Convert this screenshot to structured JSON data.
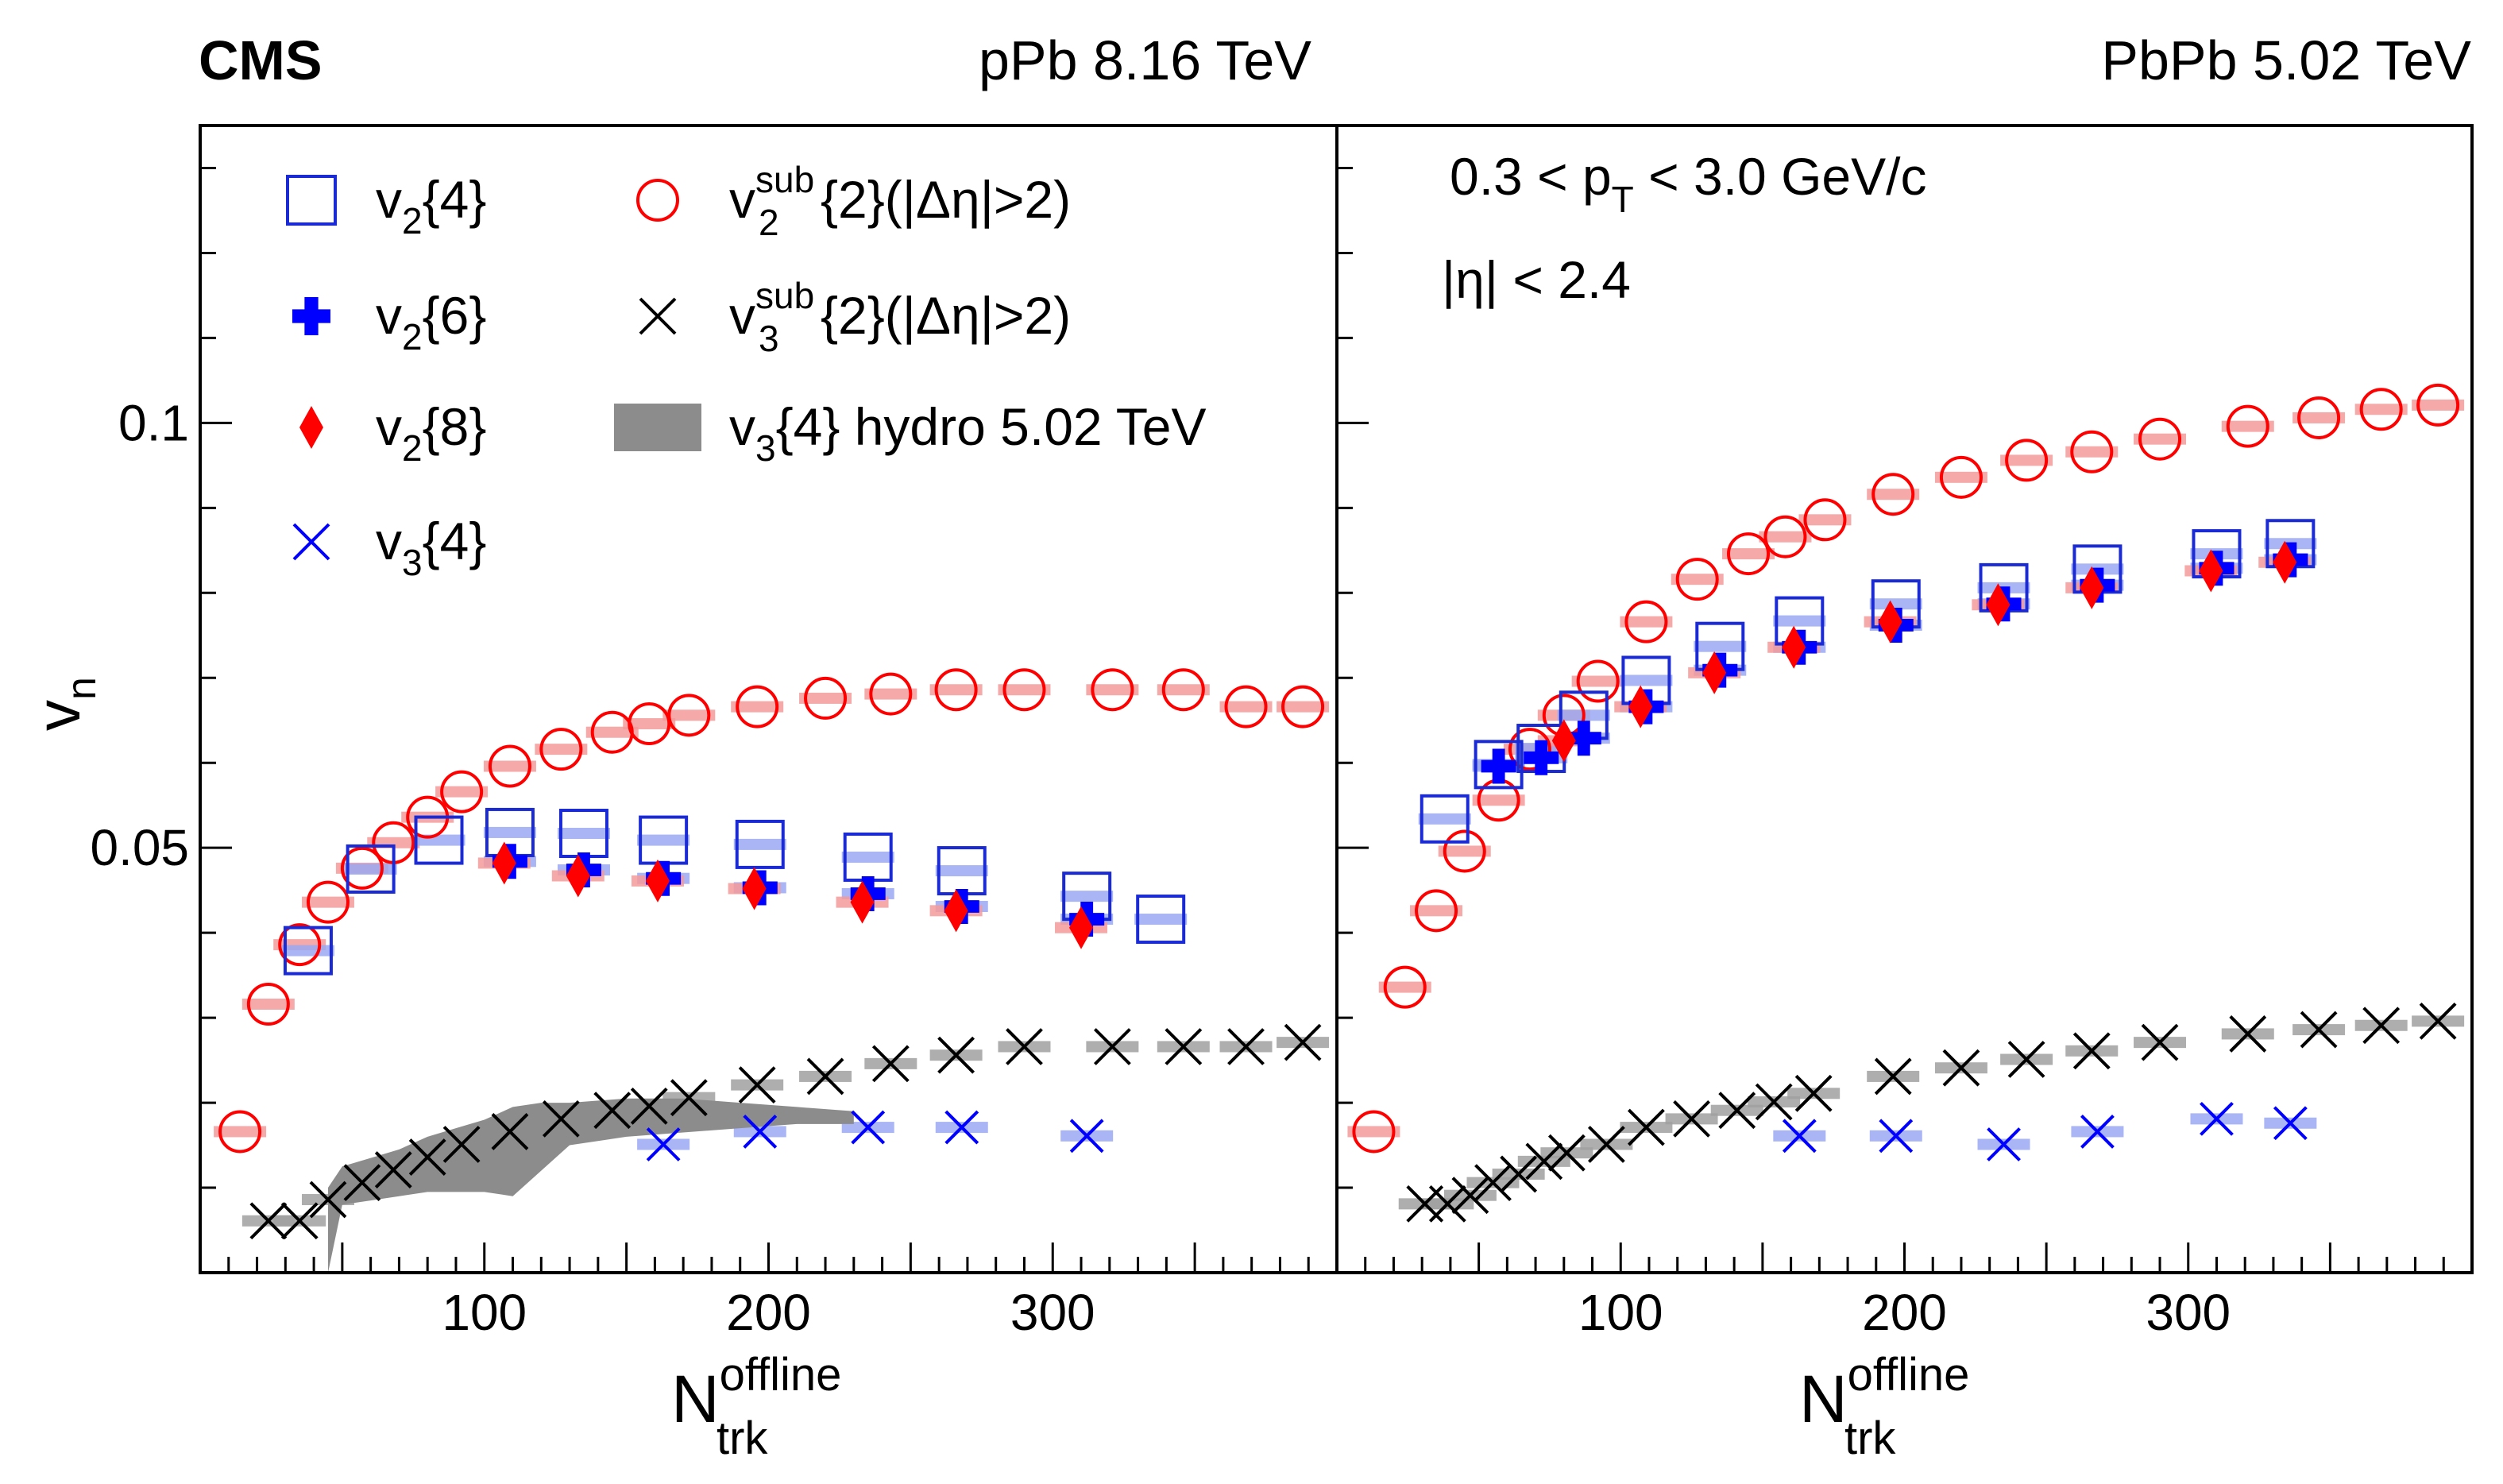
{
  "header": {
    "experiment": "CMS",
    "left_system": "pPb 8.16 TeV",
    "right_system": "PbPb 5.02 TeV"
  },
  "cuts": {
    "pt": "0.3 < p",
    "pt_sub": "T",
    "pt_rest": " < 3.0 GeV/c",
    "eta": "|η| < 2.4"
  },
  "axes": {
    "ylabel": "v",
    "ylabel_sub": "n",
    "xlabel": "N",
    "xlabel_sup": "offline",
    "xlabel_sub": "trk"
  },
  "legend": [
    {
      "id": "v2_4",
      "base": "v",
      "sub": "2",
      "sup": "",
      "rest": "{4}",
      "marker": "open-square",
      "color": "#1a2bd6"
    },
    {
      "id": "v2_6",
      "base": "v",
      "sub": "2",
      "sup": "",
      "rest": "{6}",
      "marker": "filled-cross",
      "color": "#0000ff"
    },
    {
      "id": "v2_8",
      "base": "v",
      "sub": "2",
      "sup": "",
      "rest": "{8}",
      "marker": "filled-diamond",
      "color": "#ff0000"
    },
    {
      "id": "v3_4",
      "base": "v",
      "sub": "3",
      "sup": "",
      "rest": "{4}",
      "marker": "x",
      "color": "#0000ff"
    },
    {
      "id": "v2sub",
      "base": "v",
      "sub": "2",
      "sup": "sub",
      "rest": "{2}(|Δη|>2)",
      "marker": "open-circle",
      "color": "#ff0000"
    },
    {
      "id": "v3sub",
      "base": "v",
      "sub": "3",
      "sup": "sub",
      "rest": "{2}(|Δη|>2)",
      "marker": "x",
      "color": "#000000"
    },
    {
      "id": "hydro",
      "base": "v",
      "sub": "3",
      "sup": "",
      "rest": "{4} hydro 5.02 TeV",
      "marker": "band",
      "color": "#8c8c8c"
    }
  ],
  "chart_data": [
    {
      "type": "scatter",
      "panel": "pPb 8.16 TeV",
      "xlim": [
        0,
        400
      ],
      "ylim": [
        0,
        0.135
      ],
      "xticks": [
        100,
        200,
        300
      ],
      "yticks": [
        0.05,
        0.1
      ],
      "ytick_labels": [
        "0.05",
        "0.1"
      ],
      "series": [
        {
          "name": "v2sub",
          "x": [
            14,
            24,
            35,
            45,
            57,
            68,
            80,
            92,
            109,
            127,
            145,
            158,
            172,
            196,
            220,
            243,
            266,
            290,
            321,
            346,
            368,
            388
          ],
          "y": [
            0.0166,
            0.0316,
            0.0386,
            0.0436,
            0.0476,
            0.0506,
            0.0536,
            0.0566,
            0.0596,
            0.0616,
            0.0636,
            0.0646,
            0.0656,
            0.0666,
            0.0676,
            0.0681,
            0.0686,
            0.0686,
            0.0686,
            0.0686,
            0.0666,
            0.0666
          ]
        },
        {
          "name": "v2_4",
          "x": [
            38,
            60,
            84,
            109,
            135,
            163,
            197,
            235,
            268,
            312,
            338
          ],
          "y": [
            0.0379,
            0.0475,
            0.0509,
            0.0518,
            0.0517,
            0.0509,
            0.0504,
            0.0489,
            0.0473,
            0.0443,
            0.0416
          ]
        },
        {
          "name": "v2_6",
          "x": [
            109,
            135,
            163,
            197,
            235,
            268,
            312
          ],
          "y": [
            0.0484,
            0.0474,
            0.0464,
            0.0453,
            0.0446,
            0.0431,
            0.0416
          ]
        },
        {
          "name": "v2_8",
          "x": [
            107,
            133,
            161,
            195,
            233,
            266,
            310
          ],
          "y": [
            0.0482,
            0.0467,
            0.0461,
            0.0452,
            0.0436,
            0.0426,
            0.0406
          ]
        },
        {
          "name": "v3_4",
          "x": [
            163,
            197,
            235,
            268,
            312
          ],
          "y": [
            0.0151,
            0.0166,
            0.0171,
            0.0171,
            0.0161
          ]
        },
        {
          "name": "v3sub",
          "x": [
            24,
            35,
            45,
            57,
            68,
            80,
            92,
            109,
            127,
            145,
            158,
            172,
            196,
            220,
            243,
            266,
            290,
            321,
            346,
            368,
            388
          ],
          "y": [
            0.0061,
            0.0061,
            0.0086,
            0.0106,
            0.0121,
            0.0136,
            0.0151,
            0.0166,
            0.0181,
            0.0191,
            0.0196,
            0.0206,
            0.0221,
            0.0231,
            0.0246,
            0.0256,
            0.0266,
            0.0266,
            0.0266,
            0.0266,
            0.0271
          ]
        },
        {
          "name": "hydro",
          "x": [
            45,
            50,
            60,
            70,
            80,
            90,
            100,
            110,
            120,
            130,
            150,
            170,
            190,
            210,
            230
          ],
          "y_low": [
            0.0,
            0.008,
            0.0085,
            0.009,
            0.0095,
            0.0095,
            0.0095,
            0.009,
            0.012,
            0.015,
            0.016,
            0.0165,
            0.017,
            0.0175,
            0.0175
          ],
          "y_high": [
            0.01,
            0.0125,
            0.0135,
            0.0145,
            0.016,
            0.017,
            0.018,
            0.0195,
            0.02,
            0.02,
            0.0205,
            0.0205,
            0.02,
            0.0195,
            0.019
          ]
        }
      ]
    },
    {
      "type": "scatter",
      "panel": "PbPb 5.02 TeV",
      "xlim": [
        0,
        400
      ],
      "ylim": [
        0,
        0.135
      ],
      "xticks": [
        100,
        200,
        300
      ],
      "yticks": [
        0.05,
        0.1
      ],
      "series": [
        {
          "name": "v2sub",
          "x": [
            13,
            24,
            35,
            45,
            57,
            68,
            80,
            92,
            109,
            127,
            145,
            158,
            172,
            196,
            220,
            243,
            266,
            290,
            321,
            346,
            368,
            388
          ],
          "y": [
            0.0166,
            0.0336,
            0.0426,
            0.0496,
            0.0556,
            0.0616,
            0.0656,
            0.0696,
            0.0766,
            0.0816,
            0.0846,
            0.0866,
            0.0886,
            0.0916,
            0.0936,
            0.0956,
            0.0966,
            0.0981,
            0.0996,
            0.1006,
            0.1016,
            0.1021
          ]
        },
        {
          "name": "v2_4",
          "x": [
            38,
            57,
            72,
            87,
            109,
            135,
            163,
            197,
            235,
            268,
            310,
            336
          ],
          "y": [
            0.0534,
            0.0598,
            0.0617,
            0.0656,
            0.0697,
            0.0737,
            0.0767,
            0.0787,
            0.0806,
            0.0828,
            0.0846,
            0.0858
          ]
        },
        {
          "name": "v2_6",
          "x": [
            57,
            72,
            87,
            109,
            135,
            163,
            197,
            235,
            268,
            310,
            336
          ],
          "y": [
            0.0596,
            0.0606,
            0.0629,
            0.0666,
            0.0709,
            0.0736,
            0.0762,
            0.0787,
            0.0809,
            0.0829,
            0.0839
          ]
        },
        {
          "name": "v2_8",
          "x": [
            80,
            107,
            133,
            161,
            195,
            233,
            266,
            308,
            334
          ],
          "y": [
            0.0626,
            0.0666,
            0.0706,
            0.0736,
            0.0766,
            0.0786,
            0.0806,
            0.0826,
            0.0836
          ]
        },
        {
          "name": "v3_4",
          "x": [
            163,
            197,
            235,
            268,
            310,
            336
          ],
          "y": [
            0.0161,
            0.0161,
            0.0151,
            0.0166,
            0.0181,
            0.0176
          ]
        },
        {
          "name": "v3sub",
          "x": [
            31,
            39,
            47,
            55,
            64,
            73,
            81,
            95,
            109,
            125,
            141,
            154,
            168,
            196,
            220,
            243,
            266,
            290,
            321,
            346,
            368,
            388
          ],
          "y": [
            0.0081,
            0.0081,
            0.0091,
            0.0106,
            0.0116,
            0.0131,
            0.0141,
            0.0151,
            0.0171,
            0.0181,
            0.0191,
            0.0201,
            0.0211,
            0.0231,
            0.0241,
            0.0251,
            0.0261,
            0.0271,
            0.0281,
            0.0286,
            0.0291,
            0.0296
          ]
        }
      ]
    }
  ]
}
